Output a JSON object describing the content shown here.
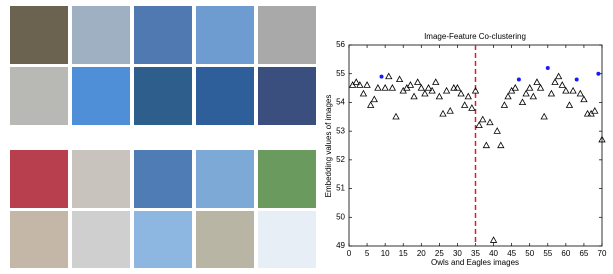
{
  "chart_data": {
    "type": "scatter",
    "title": "Image-Feature Co-clustering",
    "xlabel": "Owls and Eagles images",
    "ylabel": "Embedding values of images",
    "xlim": [
      0,
      70
    ],
    "xticks": [
      0,
      5,
      10,
      15,
      20,
      25,
      30,
      35,
      40,
      45,
      50,
      55,
      60,
      65,
      70
    ],
    "ylim": [
      49,
      56
    ],
    "yticks": [
      49,
      50,
      51,
      52,
      53,
      54,
      55,
      56
    ],
    "vline": {
      "x": 35,
      "color": "#e02020"
    },
    "series": [
      {
        "marker": "triangle",
        "color": "#000000",
        "x": [
          1,
          2,
          3,
          4,
          5,
          6,
          7,
          8,
          10,
          11,
          12,
          13,
          14,
          15,
          16,
          17,
          18,
          19,
          20,
          21,
          22,
          23,
          24,
          25,
          26,
          27,
          28,
          29,
          30,
          31,
          32,
          33,
          34,
          35,
          36,
          37,
          38,
          39,
          40,
          41,
          42,
          43,
          44,
          45,
          46,
          48,
          49,
          50,
          51,
          52,
          53,
          54,
          56,
          57,
          58,
          59,
          60,
          61,
          62,
          64,
          65,
          66,
          67,
          68,
          70
        ],
        "values": [
          54.6,
          54.7,
          54.6,
          54.3,
          54.6,
          53.9,
          54.1,
          54.5,
          54.5,
          54.9,
          54.5,
          53.5,
          54.8,
          54.4,
          54.5,
          54.6,
          54.2,
          54.7,
          54.5,
          54.3,
          54.5,
          54.4,
          54.7,
          54.2,
          53.6,
          54.4,
          53.7,
          54.5,
          54.5,
          54.3,
          53.9,
          54.2,
          53.8,
          54.4,
          53.2,
          53.4,
          52.5,
          53.3,
          49.2,
          53.0,
          52.5,
          53.9,
          54.2,
          54.4,
          54.5,
          54.0,
          54.3,
          54.5,
          54.2,
          54.7,
          54.5,
          53.5,
          54.3,
          54.7,
          54.9,
          54.6,
          54.4,
          53.9,
          54.4,
          54.3,
          54.1,
          53.6,
          53.6,
          53.7,
          52.7
        ]
      },
      {
        "marker": "dot",
        "color": "#1a1aff",
        "x": [
          9,
          47,
          55,
          63,
          69
        ],
        "values": [
          54.9,
          54.8,
          55.2,
          54.8,
          55.0
        ]
      }
    ]
  }
}
